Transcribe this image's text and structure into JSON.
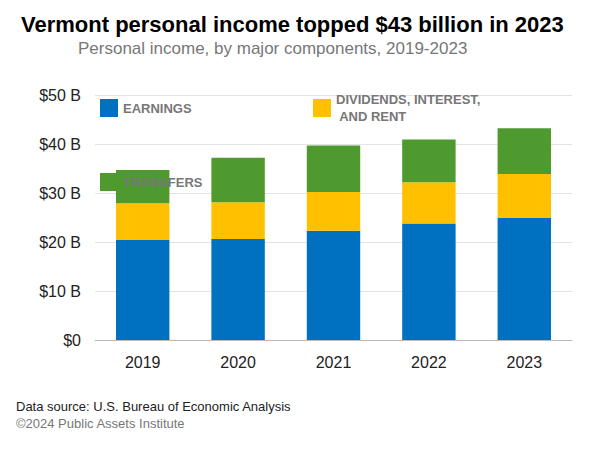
{
  "chart_data": {
    "type": "bar",
    "title": "Vermont personal income topped $43 billion in 2023",
    "subtitle": "Personal income, by major components, 2019-2023",
    "source": "Data source: U.S. Bureau of Economic Analysis",
    "copyright": "©2024 Public Assets Institute",
    "categories": [
      "2019",
      "2020",
      "2021",
      "2022",
      "2023"
    ],
    "series": [
      {
        "name": "EARNINGS",
        "color": "#0070c0",
        "values": [
          20.4,
          20.6,
          22.3,
          23.8,
          24.9
        ]
      },
      {
        "name": "DIVIDENDS, INTEREST, AND RENT",
        "color": "#ffc000",
        "values": [
          7.5,
          7.5,
          7.9,
          8.4,
          9.0
        ]
      },
      {
        "name": "TRANSFERS",
        "color": "#4e9a2f",
        "values": [
          6.8,
          9.1,
          9.5,
          8.7,
          9.3
        ]
      }
    ],
    "stacked": true,
    "ylim": [
      0,
      50
    ],
    "yticks": [
      {
        "value": 0,
        "label": "$0"
      },
      {
        "value": 10,
        "label": "$10 B"
      },
      {
        "value": 20,
        "label": "$20 B"
      },
      {
        "value": 30,
        "label": "$30 B"
      },
      {
        "value": 40,
        "label": "$40 B"
      },
      {
        "value": 50,
        "label": "$50 B"
      }
    ],
    "grid": true,
    "legend": "top"
  }
}
